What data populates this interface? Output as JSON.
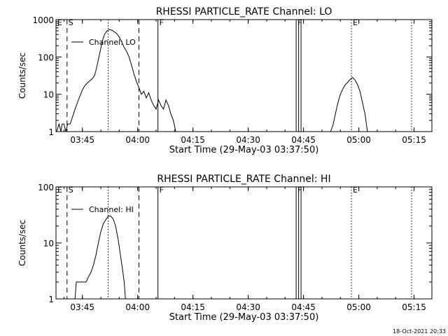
{
  "footer_timestamp": "18-Oct-2021 20:33",
  "chart_data": [
    {
      "type": "line",
      "title": "RHESSI PARTICLE_RATE Channel: LO",
      "xlabel": "Start Time (29-May-03 03:37:50)",
      "ylabel": "Counts/sec",
      "yscale": "log",
      "ylim": [
        1,
        1000
      ],
      "xlim_minutes_after_0337_50": [
        0,
        102
      ],
      "x_ticks": [
        "03:45",
        "04:00",
        "04:15",
        "04:30",
        "04:45",
        "05:00",
        "05:15"
      ],
      "y_ticks": [
        "1",
        "10",
        "100",
        "1000"
      ],
      "legend": [
        "Channel: LO"
      ],
      "legend_position": "top-left",
      "event_lines": [
        {
          "label": "E",
          "x": "03:37:50",
          "style": "solid"
        },
        {
          "label": "S",
          "x": "03:40:50",
          "style": "dashed"
        },
        {
          "label": "",
          "x": "03:52:00",
          "style": "dotted"
        },
        {
          "label": "",
          "x": "04:00:20",
          "style": "dashed"
        },
        {
          "label": "F",
          "x": "04:05:30",
          "style": "solid"
        },
        {
          "label": "F",
          "x": "04:43:00",
          "style": "solid"
        },
        {
          "label": "",
          "x": "04:43:40",
          "style": "solid"
        },
        {
          "label": "",
          "x": "04:44:20",
          "style": "solid"
        },
        {
          "label": "E",
          "x": "04:58:00",
          "style": "dotted"
        },
        {
          "label": "",
          "x": "05:14:20",
          "style": "dotted"
        }
      ],
      "series": [
        {
          "name": "Channel: LO",
          "segments": [
            [
              [
                "03:38:00",
                1
              ],
              [
                "03:38:40",
                1.6
              ],
              [
                "03:39:10",
                1
              ],
              [
                "03:39:30",
                1.6
              ],
              [
                "03:40:00",
                1.6
              ],
              [
                "03:40:30",
                1
              ],
              [
                "03:41:00",
                1.6
              ],
              [
                "03:41:40",
                1.6
              ],
              [
                "03:42:20",
                2.5
              ],
              [
                "03:43:00",
                4
              ],
              [
                "03:43:40",
                6
              ],
              [
                "03:44:20",
                9
              ],
              [
                "03:45:00",
                13
              ],
              [
                "03:45:40",
                17
              ],
              [
                "03:46:20",
                20
              ],
              [
                "03:47:00",
                23
              ],
              [
                "03:47:40",
                26
              ],
              [
                "03:48:20",
                32
              ],
              [
                "03:49:00",
                60
              ],
              [
                "03:49:40",
                120
              ],
              [
                "03:50:20",
                250
              ],
              [
                "03:51:00",
                400
              ],
              [
                "03:51:40",
                500
              ],
              [
                "03:52:20",
                540
              ],
              [
                "03:53:00",
                520
              ],
              [
                "03:53:40",
                470
              ],
              [
                "03:54:20",
                420
              ],
              [
                "03:55:00",
                340
              ],
              [
                "03:55:40",
                250
              ],
              [
                "03:56:20",
                180
              ],
              [
                "03:57:00",
                140
              ],
              [
                "03:57:40",
                100
              ],
              [
                "03:58:20",
                60
              ],
              [
                "03:59:00",
                35
              ],
              [
                "03:59:40",
                22
              ],
              [
                "04:00:20",
                15
              ],
              [
                "04:01:00",
                10
              ],
              [
                "04:01:40",
                12
              ],
              [
                "04:02:20",
                8
              ],
              [
                "04:03:00",
                11
              ],
              [
                "04:03:40",
                7
              ],
              [
                "04:04:20",
                5
              ],
              [
                "04:05:00",
                4
              ],
              [
                "04:05:40",
                7
              ],
              [
                "04:06:20",
                5
              ],
              [
                "04:07:00",
                4
              ],
              [
                "04:07:40",
                7
              ],
              [
                "04:08:20",
                5
              ],
              [
                "04:09:00",
                3
              ],
              [
                "04:09:40",
                2
              ],
              [
                "04:10:20",
                1
              ]
            ],
            [
              [
                "04:52:20",
                1
              ],
              [
                "04:53:00",
                1.5
              ],
              [
                "04:53:40",
                3
              ],
              [
                "04:54:20",
                6
              ],
              [
                "04:55:00",
                10
              ],
              [
                "04:55:40",
                14
              ],
              [
                "04:56:20",
                18
              ],
              [
                "04:57:00",
                21
              ],
              [
                "04:57:40",
                25
              ],
              [
                "04:58:20",
                28
              ],
              [
                "04:59:00",
                24
              ],
              [
                "04:59:40",
                18
              ],
              [
                "05:00:20",
                12
              ],
              [
                "05:01:00",
                6
              ],
              [
                "05:01:40",
                3
              ],
              [
                "05:02:20",
                1
              ]
            ]
          ]
        }
      ]
    },
    {
      "type": "line",
      "title": "RHESSI PARTICLE_RATE Channel: HI",
      "xlabel": "Start Time (29-May-03 03:37:50)",
      "ylabel": "Counts/sec",
      "yscale": "log",
      "ylim": [
        1,
        100
      ],
      "xlim_minutes_after_0337_50": [
        0,
        102
      ],
      "x_ticks": [
        "03:45",
        "04:00",
        "04:15",
        "04:30",
        "04:45",
        "05:00",
        "05:15"
      ],
      "y_ticks": [
        "1",
        "10",
        "100"
      ],
      "legend": [
        "Channel: HI"
      ],
      "legend_position": "top-left",
      "event_lines": [
        {
          "label": "E",
          "x": "03:37:50",
          "style": "solid"
        },
        {
          "label": "S",
          "x": "03:40:50",
          "style": "dashed"
        },
        {
          "label": "",
          "x": "03:52:00",
          "style": "dotted"
        },
        {
          "label": "",
          "x": "04:00:20",
          "style": "dashed"
        },
        {
          "label": "F",
          "x": "04:05:30",
          "style": "solid"
        },
        {
          "label": "F",
          "x": "04:43:00",
          "style": "solid"
        },
        {
          "label": "",
          "x": "04:43:40",
          "style": "solid"
        },
        {
          "label": "",
          "x": "04:44:20",
          "style": "solid"
        },
        {
          "label": "E",
          "x": "04:58:00",
          "style": "dotted"
        },
        {
          "label": "",
          "x": "05:14:20",
          "style": "dotted"
        }
      ],
      "series": [
        {
          "name": "Channel: HI",
          "segments": [
            [
              [
                "03:43:00",
                1
              ],
              [
                "03:43:20",
                2
              ],
              [
                "03:44:00",
                2
              ],
              [
                "03:44:40",
                2
              ],
              [
                "03:45:20",
                2
              ],
              [
                "03:46:00",
                2
              ],
              [
                "03:46:40",
                2.5
              ],
              [
                "03:47:20",
                3
              ],
              [
                "03:48:00",
                4
              ],
              [
                "03:48:40",
                6
              ],
              [
                "03:49:20",
                10
              ],
              [
                "03:50:00",
                16
              ],
              [
                "03:50:40",
                22
              ],
              [
                "03:51:20",
                26
              ],
              [
                "03:52:00",
                30
              ],
              [
                "03:52:40",
                30
              ],
              [
                "03:53:20",
                27
              ],
              [
                "03:54:00",
                20
              ],
              [
                "03:54:40",
                12
              ],
              [
                "03:55:20",
                6
              ],
              [
                "03:56:00",
                3
              ],
              [
                "03:56:20",
                2
              ],
              [
                "03:56:40",
                1
              ]
            ]
          ]
        }
      ]
    }
  ]
}
